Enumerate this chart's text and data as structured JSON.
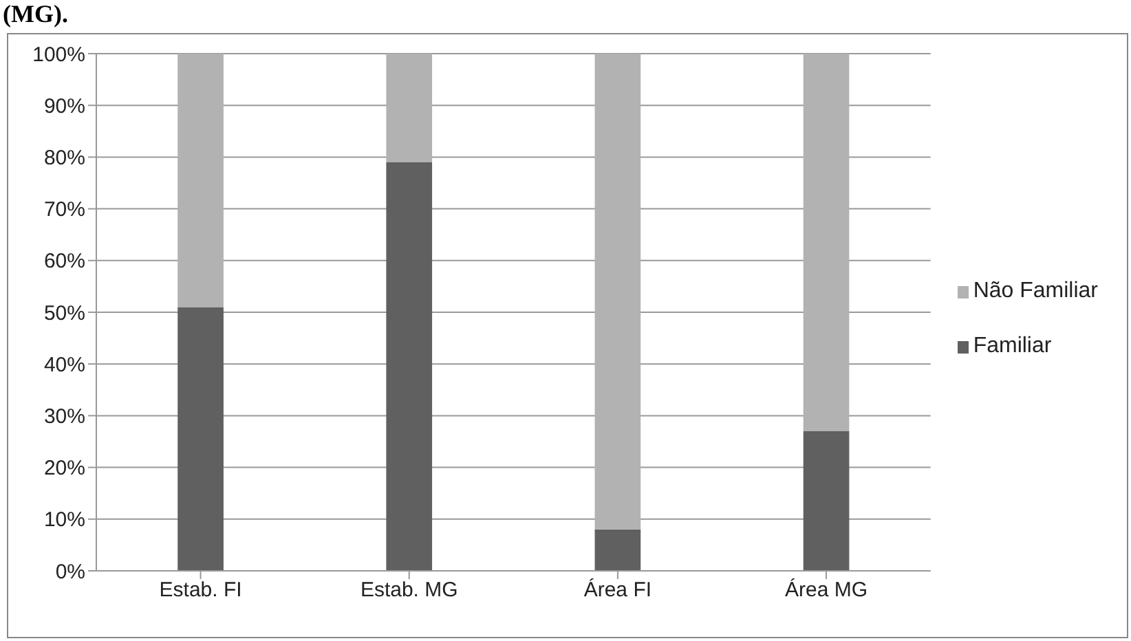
{
  "chart_data": {
    "type": "bar",
    "stacked": true,
    "annotations": [
      "(MG)."
    ],
    "categories": [
      "Estab. FI",
      "Estab. MG",
      "Área FI",
      "Área MG"
    ],
    "series": [
      {
        "name": "Familiar",
        "color": "#606060",
        "values": [
          51,
          79,
          8,
          27
        ]
      },
      {
        "name": "Não Familiar",
        "color": "#b2b2b2",
        "values": [
          49,
          21,
          92,
          73
        ]
      }
    ],
    "ylim": [
      0,
      100
    ],
    "yticks": [
      {
        "value": 0,
        "label": "0%"
      },
      {
        "value": 10,
        "label": "10%"
      },
      {
        "value": 20,
        "label": "20%"
      },
      {
        "value": 30,
        "label": "30%"
      },
      {
        "value": 40,
        "label": "40%"
      },
      {
        "value": 50,
        "label": "50%"
      },
      {
        "value": 60,
        "label": "60%"
      },
      {
        "value": 70,
        "label": "70%"
      },
      {
        "value": 80,
        "label": "80%"
      },
      {
        "value": 90,
        "label": "90%"
      },
      {
        "value": 100,
        "label": "100%"
      }
    ],
    "grid": "y",
    "legend": "right"
  }
}
